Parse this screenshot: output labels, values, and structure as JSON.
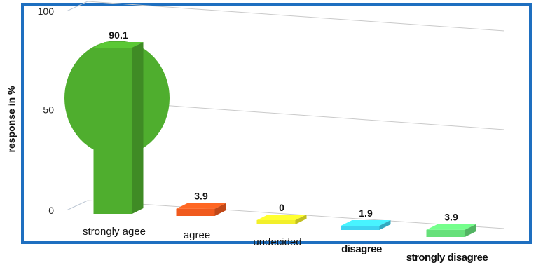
{
  "chart_data": {
    "type": "bar",
    "ylabel": "response in %",
    "ylim": [
      0,
      100
    ],
    "yticks": [
      "0",
      "50",
      "100"
    ],
    "grid": true,
    "categories": [
      "strongly agee",
      "agree",
      "undecided",
      "disagree",
      "strongly disagree"
    ],
    "values": [
      90.1,
      3.9,
      0,
      1.9,
      3.9
    ],
    "value_labels": [
      "90.1",
      "3.9",
      "0",
      "1.9",
      "3.9"
    ],
    "colors": [
      "#4fae2e",
      "#f05a1e",
      "#f2ef2a",
      "#3fd4f0",
      "#66e07a"
    ]
  }
}
